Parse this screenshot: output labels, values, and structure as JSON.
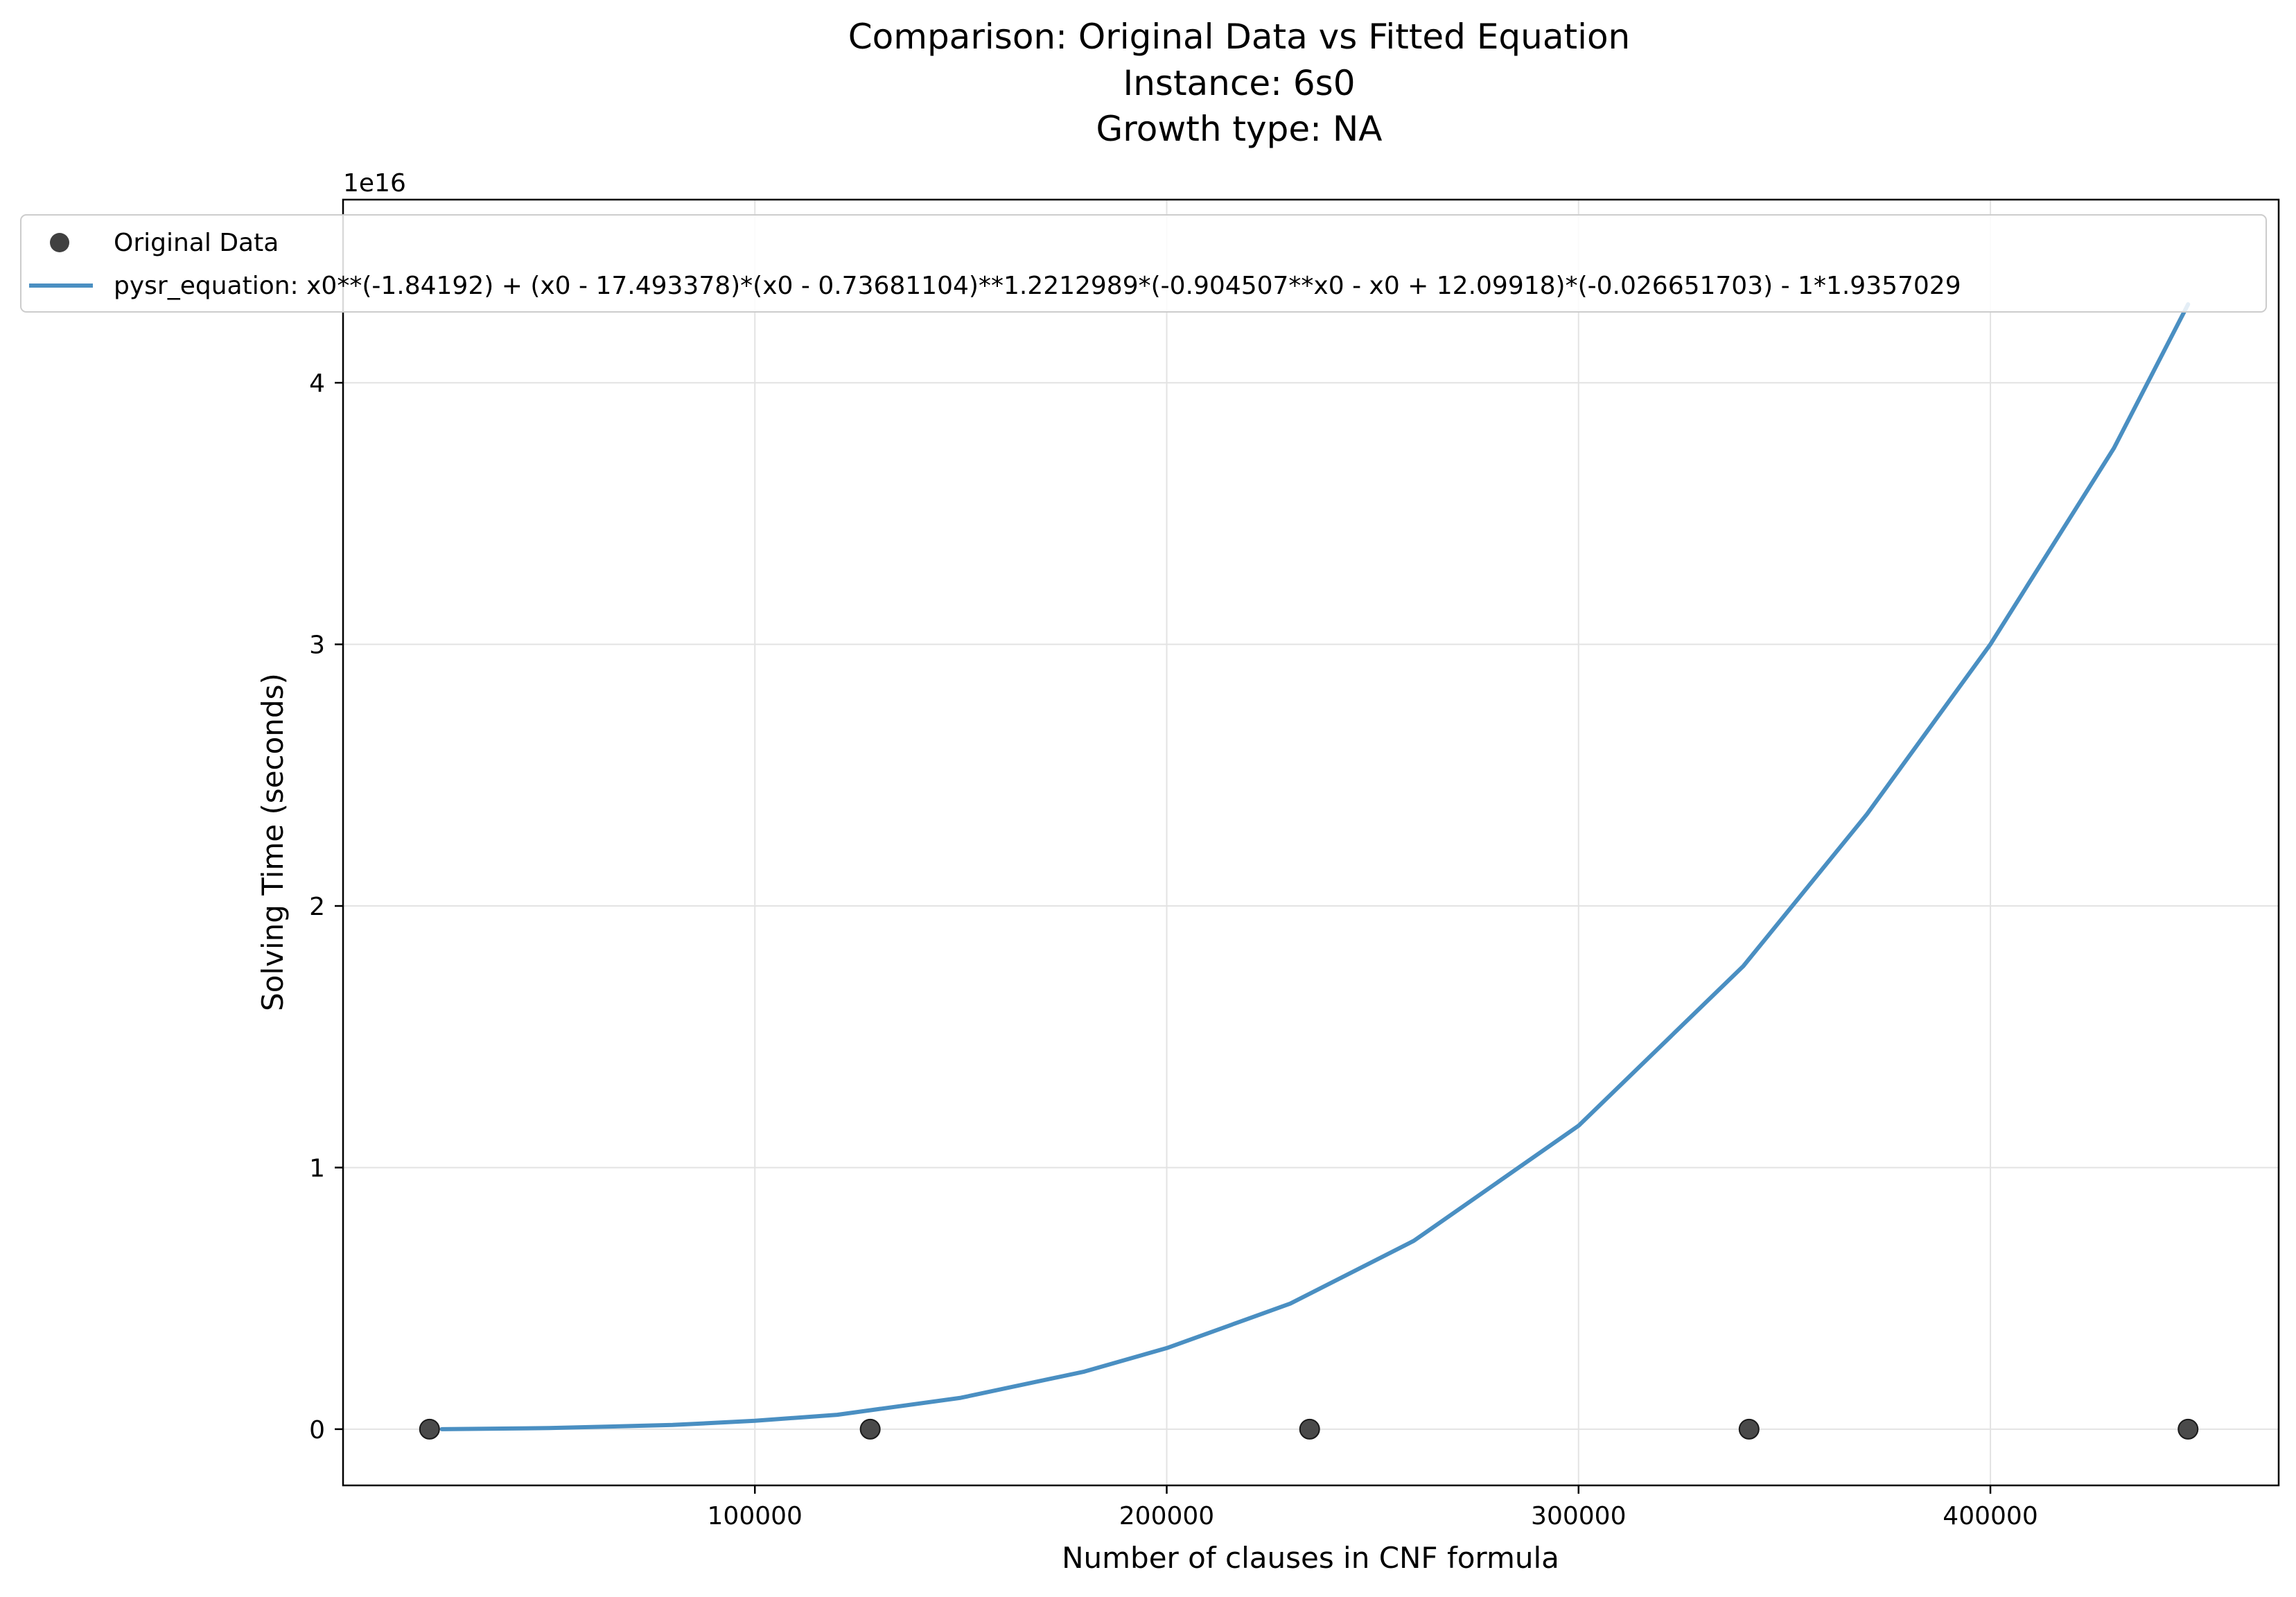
{
  "chart_data": {
    "type": "scatter",
    "title_lines": [
      "Comparison: Original Data vs Fitted Equation",
      "Instance: 6s0",
      "Growth type: NA"
    ],
    "xlabel": "Number of clauses in CNF formula",
    "ylabel": "Solving Time (seconds)",
    "y_offset_label": "1e16",
    "xlim": [
      0,
      470000
    ],
    "ylim": [
      -0.215,
      4.7
    ],
    "x_ticks": [
      100000,
      200000,
      300000,
      400000
    ],
    "x_tick_labels": [
      "100000",
      "200000",
      "300000",
      "400000"
    ],
    "y_ticks": [
      0,
      1,
      2,
      3,
      4
    ],
    "y_tick_labels": [
      "0",
      "1",
      "2",
      "3",
      "4"
    ],
    "grid": true,
    "legend_position": "top-left",
    "series": [
      {
        "name": "Original Data",
        "kind": "scatter",
        "color": "#404040",
        "x": [
          21000,
          128000,
          234700,
          341400,
          448000
        ],
        "y": [
          0,
          0,
          0,
          0,
          0
        ]
      },
      {
        "name": "pysr_equation: x0**(-1.84192) + (x0 - 17.493378)*(x0 - 0.73681104)**1.2212989*(-0.904507**x0 - x0 + 12.09918)*(-0.026651703) - 1*1.9357029",
        "kind": "line",
        "color": "#4a8fc2",
        "x": [
          24000,
          50000,
          80000,
          100000,
          120000,
          150000,
          180000,
          200000,
          230000,
          260000,
          300000,
          340000,
          370000,
          400000,
          430000,
          448000
        ],
        "y": [
          0.0,
          0.004,
          0.016,
          0.032,
          0.055,
          0.12,
          0.22,
          0.31,
          0.48,
          0.72,
          1.16,
          1.77,
          2.35,
          3.0,
          3.75,
          4.3
        ]
      }
    ]
  }
}
